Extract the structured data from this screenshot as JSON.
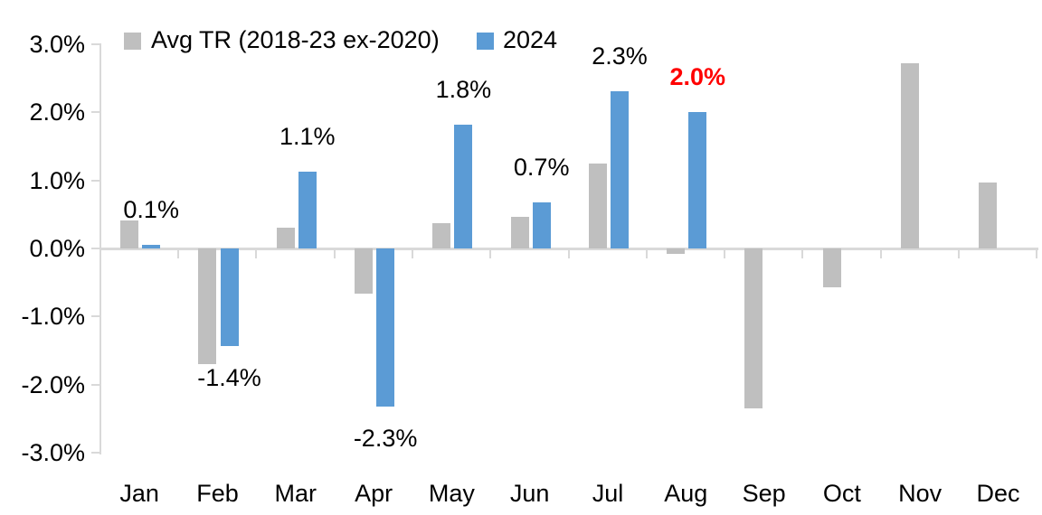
{
  "chart_data": {
    "type": "bar",
    "title": "",
    "categories": [
      "Jan",
      "Feb",
      "Mar",
      "Apr",
      "May",
      "Jun",
      "Jul",
      "Aug",
      "Sep",
      "Oct",
      "Nov",
      "Dec"
    ],
    "y_axis": {
      "ticks": [
        "3.0%",
        "2.0%",
        "1.0%",
        "0.0%",
        "-1.0%",
        "-2.0%",
        "-3.0%"
      ],
      "ylim": [
        -3.0,
        3.0
      ],
      "unit": "%"
    },
    "grid": false,
    "legend_position": "top",
    "axis_color": "#d9d9d9",
    "series": [
      {
        "name": "Avg TR (2018-23 ex-2020)",
        "color": "#bfbfbf",
        "values": [
          0.41,
          -1.7,
          0.31,
          -0.66,
          0.37,
          0.46,
          1.25,
          -0.08,
          -2.35,
          -0.57,
          2.72,
          0.97
        ]
      },
      {
        "name": "2024",
        "color": "#5b9bd5",
        "values": [
          0.05,
          -1.44,
          1.13,
          -2.33,
          1.82,
          0.68,
          2.31,
          2.0,
          null,
          null,
          null,
          null
        ]
      }
    ],
    "data_labels": [
      {
        "month": "Jan",
        "text": "0.1%",
        "color": "#000000",
        "bold": false
      },
      {
        "month": "Feb",
        "text": "-1.4%",
        "color": "#000000",
        "bold": false
      },
      {
        "month": "Mar",
        "text": "1.1%",
        "color": "#000000",
        "bold": false
      },
      {
        "month": "Apr",
        "text": "-2.3%",
        "color": "#000000",
        "bold": false
      },
      {
        "month": "May",
        "text": "1.8%",
        "color": "#000000",
        "bold": false
      },
      {
        "month": "Jun",
        "text": "0.7%",
        "color": "#000000",
        "bold": false
      },
      {
        "month": "Jul",
        "text": "2.3%",
        "color": "#000000",
        "bold": false
      },
      {
        "month": "Aug",
        "text": "2.0%",
        "color": "#ff0000",
        "bold": true
      }
    ]
  }
}
